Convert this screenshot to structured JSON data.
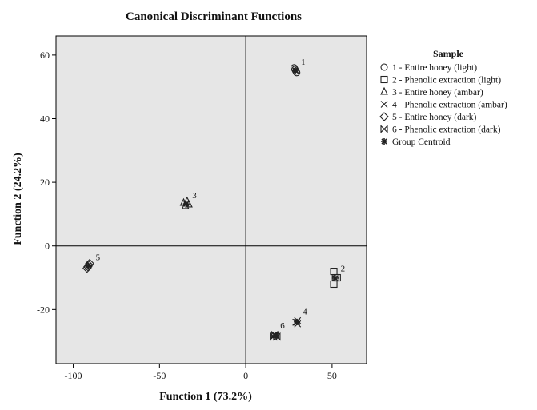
{
  "chart_data": {
    "type": "scatter",
    "title": "Canonical Discriminant Functions",
    "xlabel": "Function 1 (73.2%)",
    "ylabel": "Function 2 (24.2%)",
    "xlim": [
      -110,
      70
    ],
    "ylim": [
      -37,
      66
    ],
    "x_ticks": [
      -100,
      -50,
      0,
      50
    ],
    "y_ticks": [
      -20,
      0,
      20,
      40,
      60
    ],
    "x_tick_labels": [
      "-100",
      "-50",
      "0",
      "50"
    ],
    "y_tick_labels": [
      "-20",
      "0",
      "20",
      "40",
      "60"
    ],
    "reference_lines": {
      "x": 0,
      "y": 0
    },
    "plot_background": "#e6e6e6",
    "grid": false,
    "legend_title": "Sample",
    "legend_position": "right",
    "series": [
      {
        "name": "1 - Entire honey (light)",
        "marker": "circle",
        "points": [
          [
            28,
            56
          ],
          [
            29,
            55
          ],
          [
            29.5,
            54.5
          ],
          [
            28.5,
            55.5
          ]
        ]
      },
      {
        "name": "2 - Phenolic extraction (light)",
        "marker": "square",
        "points": [
          [
            51,
            -8
          ],
          [
            53,
            -10
          ],
          [
            51,
            -12
          ],
          [
            52,
            -10
          ]
        ]
      },
      {
        "name": "3 - Entire honey (ambar)",
        "marker": "triangle",
        "points": [
          [
            -36,
            13.5
          ],
          [
            -34,
            14
          ],
          [
            -35,
            12.5
          ],
          [
            -33,
            13
          ]
        ]
      },
      {
        "name": "4 - Phenolic extraction (ambar)",
        "marker": "x",
        "points": [
          [
            29,
            -24
          ],
          [
            30,
            -23.5
          ],
          [
            30,
            -24.5
          ],
          [
            29.5,
            -24
          ]
        ]
      },
      {
        "name": "5 - Entire honey (dark)",
        "marker": "diamond",
        "points": [
          [
            -91,
            -6
          ],
          [
            -92,
            -7
          ],
          [
            -90.5,
            -5.5
          ],
          [
            -91.5,
            -6.5
          ]
        ]
      },
      {
        "name": "6 - Phenolic extraction (dark)",
        "marker": "bowtie",
        "points": [
          [
            16,
            -28.5
          ],
          [
            18,
            -28.5
          ],
          [
            17,
            -28
          ],
          [
            16.5,
            -28
          ]
        ]
      },
      {
        "name": "Group Centroid",
        "marker": "star",
        "points": [
          [
            28.7,
            55.2
          ],
          [
            51.8,
            -10.1
          ],
          [
            -34.5,
            13.2
          ],
          [
            29.7,
            -23.9
          ],
          [
            -91.3,
            -6.2
          ],
          [
            17.1,
            -28.2
          ]
        ]
      }
    ],
    "cluster_labels": [
      {
        "text": "1",
        "x": 32,
        "y": 57
      },
      {
        "text": "2",
        "x": 55,
        "y": -8
      },
      {
        "text": "3",
        "x": -31,
        "y": 15
      },
      {
        "text": "4",
        "x": 33,
        "y": -21.5
      },
      {
        "text": "5",
        "x": -87,
        "y": -4.5
      },
      {
        "text": "6",
        "x": 20,
        "y": -26
      }
    ]
  }
}
